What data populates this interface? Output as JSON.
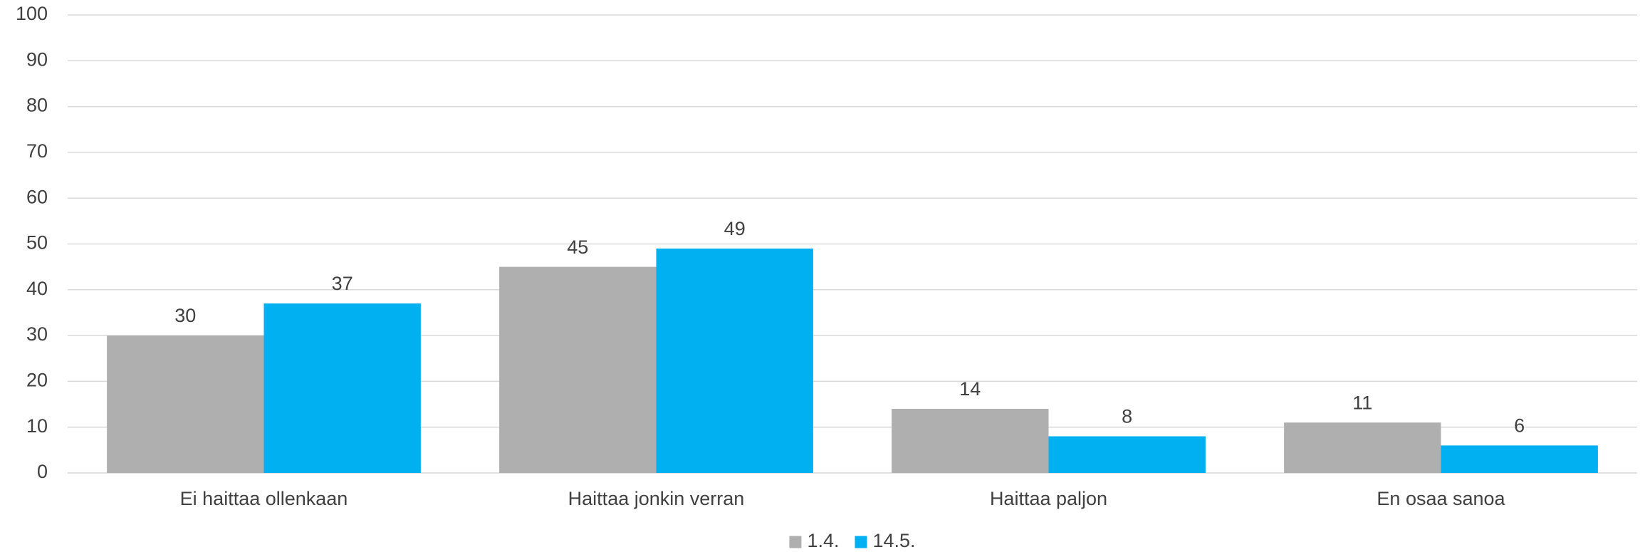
{
  "chart_data": {
    "type": "bar",
    "categories": [
      "Ei haittaa ollenkaan",
      "Haittaa jonkin verran",
      "Haittaa paljon",
      "En osaa sanoa"
    ],
    "series": [
      {
        "name": "1.4.",
        "color": "#afafaf",
        "values": [
          30,
          45,
          14,
          11
        ]
      },
      {
        "name": "14.5.",
        "color": "#00b0f0",
        "values": [
          37,
          49,
          8,
          6
        ]
      }
    ],
    "ylim": [
      0,
      100
    ],
    "yticks": [
      0,
      10,
      20,
      30,
      40,
      50,
      60,
      70,
      80,
      90,
      100
    ],
    "grid": true,
    "legend": "bottom"
  }
}
